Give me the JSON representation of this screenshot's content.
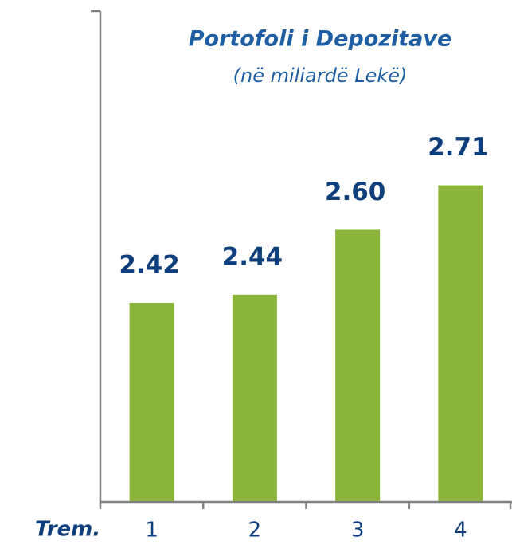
{
  "chart_data": {
    "type": "bar",
    "title": "Portofoli i Depozitave",
    "subtitle": "(në miliardë Lekë)",
    "x_label": "Trem.",
    "categories": [
      "1",
      "2",
      "3",
      "4"
    ],
    "values": [
      2.42,
      2.44,
      2.6,
      2.71
    ],
    "value_labels": [
      "2.42",
      "2.44",
      "2.60",
      "2.71"
    ],
    "color": "#8ab43a",
    "ylim": [
      1.93,
      3.14
    ]
  }
}
